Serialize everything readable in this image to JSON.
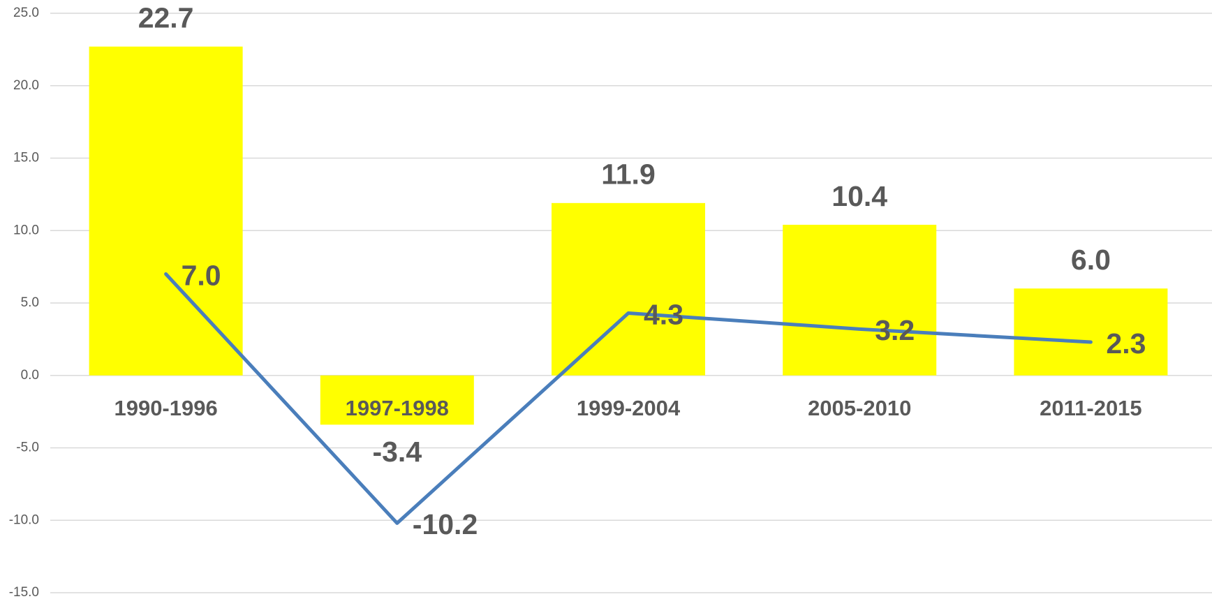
{
  "chart_data": {
    "type": "bar",
    "categories": [
      "1990-1996",
      "1997-1998",
      "1999-2004",
      "2005-2010",
      "2011-2015"
    ],
    "series": [
      {
        "type": "bar",
        "color": "#ffff00",
        "values": [
          22.7,
          -3.4,
          11.9,
          10.4,
          6.0
        ],
        "value_labels": [
          "22.7",
          "-3.4",
          "11.9",
          "10.4",
          "6.0"
        ]
      },
      {
        "type": "line",
        "color": "#4a7ebb",
        "values": [
          7.0,
          -10.2,
          4.3,
          3.2,
          2.3
        ],
        "value_labels": [
          "7.0",
          "-10.2",
          "4.3",
          "3.2",
          "2.3"
        ]
      }
    ],
    "ylim": [
      -15,
      25
    ],
    "yticks": [
      {
        "value": -15,
        "label": "-15.0"
      },
      {
        "value": -10,
        "label": "-10.0"
      },
      {
        "value": -5,
        "label": "-5.0"
      },
      {
        "value": 0,
        "label": "0.0"
      },
      {
        "value": 5,
        "label": "5.0"
      },
      {
        "value": 10,
        "label": "10.0"
      },
      {
        "value": 15,
        "label": "15.0"
      },
      {
        "value": 20,
        "label": "20.0"
      },
      {
        "value": 25,
        "label": "25.0"
      }
    ],
    "grid": true
  }
}
